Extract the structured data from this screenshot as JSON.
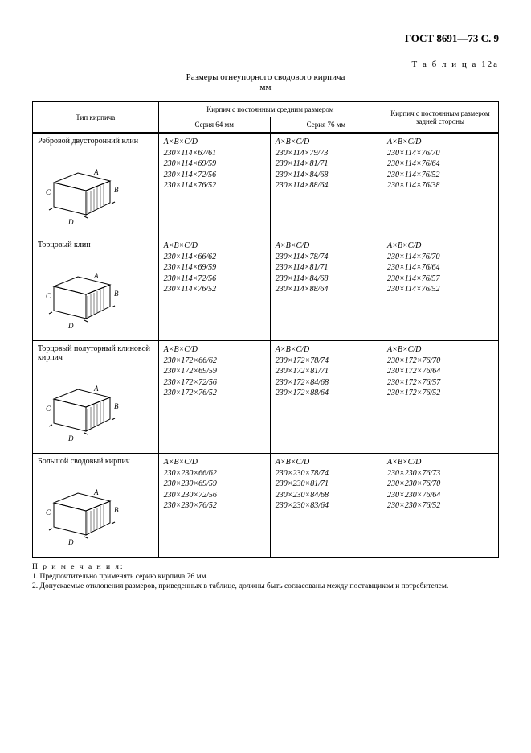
{
  "header": "ГОСТ 8691—73 С. 9",
  "table_label": "Т а б л и ц а   12а",
  "title_line1": "Размеры огнеупорного сводового кирпича",
  "title_line2": "мм",
  "columns": {
    "type": "Тип кирпича",
    "middle": "Кирпич с постоянным средним размером",
    "series64": "Серия 64 мм",
    "series76": "Серия 76 мм",
    "rear": "Кирпич с постоянным размером задней стороны"
  },
  "dim_header": "A×B×C/D",
  "rows": [
    {
      "name": "Ребровой двусторонний клин",
      "diagram": "rib-double-wedge",
      "s64": [
        "230×114×67/61",
        "230×114×69/59",
        "230×114×72/56",
        "230×114×76/52"
      ],
      "s76": [
        "230×114×79/73",
        "230×114×81/71",
        "230×114×84/68",
        "230×114×88/64"
      ],
      "rear": [
        "230×114×76/70",
        "230×114×76/64",
        "230×114×76/52",
        "230×114×76/38"
      ]
    },
    {
      "name": "Торцовый клин",
      "diagram": "end-wedge",
      "s64": [
        "230×114×66/62",
        "230×114×69/59",
        "230×114×72/56",
        "230×114×76/52"
      ],
      "s76": [
        "230×114×78/74",
        "230×114×81/71",
        "230×114×84/68",
        "230×114×88/64"
      ],
      "rear": [
        "230×114×76/70",
        "230×114×76/64",
        "230×114×76/57",
        "230×114×76/52"
      ]
    },
    {
      "name": "Торцовый полуторный клиновой кирпич",
      "diagram": "end-wedge-1p5",
      "s64": [
        "230×172×66/62",
        "230×172×69/59",
        "230×172×72/56",
        "230×172×76/52"
      ],
      "s76": [
        "230×172×78/74",
        "230×172×81/71",
        "230×172×84/68",
        "230×172×88/64"
      ],
      "rear": [
        "230×172×76/70",
        "230×172×76/64",
        "230×172×76/57",
        "230×172×76/52"
      ]
    },
    {
      "name": "Большой сводовый кирпич",
      "diagram": "large-arch",
      "s64": [
        "230×230×66/62",
        "230×230×69/59",
        "230×230×72/56",
        "230×230×76/52"
      ],
      "s76": [
        "230×230×78/74",
        "230×230×81/71",
        "230×230×84/68",
        "230×230×83/64"
      ],
      "rear": [
        "230×230×76/73",
        "230×230×76/70",
        "230×230×76/64",
        "230×230×76/52"
      ]
    }
  ],
  "notes": {
    "label": "П р и м е ч а н и я:",
    "n1": "1. Предпочтительно применять серию кирпича 76 мм.",
    "n2": "2. Допускаемые отклонения размеров, приведенных в таблице, должны быть согласованы между поставщиком и потребителем."
  },
  "style": {
    "font_family": "Times New Roman",
    "text_color": "#000000",
    "background": "#ffffff",
    "border_color": "#000000",
    "body_fontsize": 10,
    "header_fontsize": 13
  }
}
